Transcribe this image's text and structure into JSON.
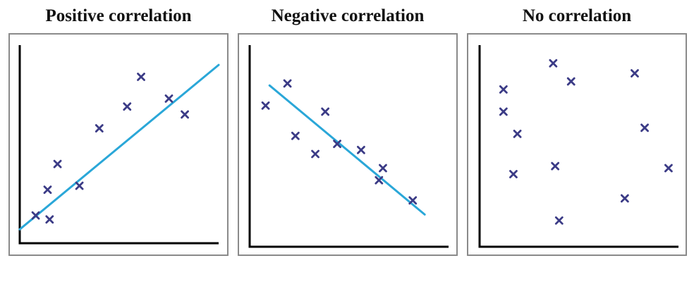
{
  "colors": {
    "marker": "#3b3b86",
    "trend": "#2aa7d8",
    "axis": "#000000",
    "frame": "#8a8a8a"
  },
  "chart_data": [
    {
      "type": "scatter",
      "title": "Positive correlation",
      "points": [
        [
          8,
          14
        ],
        [
          15,
          12
        ],
        [
          14,
          27
        ],
        [
          19,
          40
        ],
        [
          30,
          29
        ],
        [
          40,
          58
        ],
        [
          54,
          69
        ],
        [
          61,
          84
        ],
        [
          75,
          73
        ],
        [
          83,
          65
        ]
      ],
      "trend": [
        [
          0,
          7
        ],
        [
          100,
          90
        ]
      ],
      "grid": false,
      "ticks": false
    },
    {
      "type": "scatter",
      "title": "Negative correlation",
      "points": [
        [
          8,
          70
        ],
        [
          19,
          81
        ],
        [
          23,
          55
        ],
        [
          33,
          46
        ],
        [
          38,
          67
        ],
        [
          44,
          51
        ],
        [
          56,
          48
        ],
        [
          65,
          33
        ],
        [
          67,
          39
        ],
        [
          82,
          23
        ]
      ],
      "trend": [
        [
          10,
          80
        ],
        [
          88,
          16
        ]
      ],
      "grid": false,
      "ticks": false
    },
    {
      "type": "scatter",
      "title": "No correlation",
      "points": [
        [
          12,
          78
        ],
        [
          17,
          36
        ],
        [
          12,
          67
        ],
        [
          19,
          56
        ],
        [
          37,
          91
        ],
        [
          38,
          40
        ],
        [
          40,
          13
        ],
        [
          46,
          82
        ],
        [
          73,
          24
        ],
        [
          78,
          86
        ],
        [
          83,
          59
        ],
        [
          95,
          39
        ]
      ],
      "trend": null,
      "grid": false,
      "ticks": false
    }
  ]
}
